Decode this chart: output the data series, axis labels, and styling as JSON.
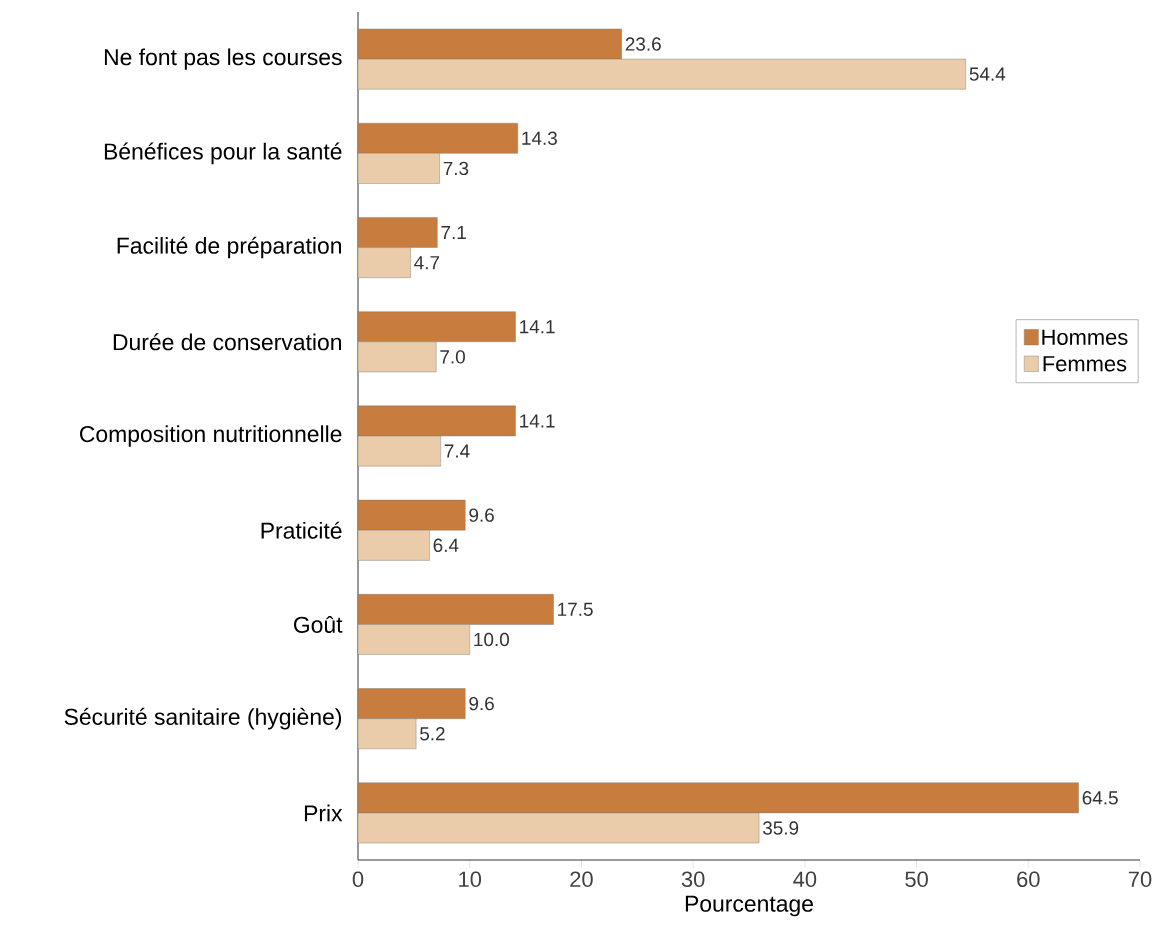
{
  "chart_data": {
    "type": "bar",
    "orientation": "horizontal",
    "xlabel": "Pourcentage",
    "categories": [
      "Ne font pas les courses",
      "Bénéfices pour la santé",
      "Facilité de préparation",
      "Durée de conservation",
      "Composition nutritionnelle",
      "Praticité",
      "Goût",
      "Sécurité sanitaire (hygiène)",
      "Prix"
    ],
    "series": [
      {
        "name": "Hommes",
        "color": "#c87d3e",
        "values": [
          23.6,
          14.3,
          7.1,
          14.1,
          14.1,
          9.6,
          17.5,
          9.6,
          64.5
        ],
        "value_labels": [
          "23.6",
          "14.3",
          "7.1",
          "14.1",
          "14.1",
          "9.6",
          "17.5",
          "9.6",
          "64.5"
        ]
      },
      {
        "name": "Femmes",
        "color": "#eacbaa",
        "values": [
          54.4,
          7.3,
          4.7,
          7.0,
          7.4,
          6.4,
          10.0,
          5.2,
          35.9
        ],
        "value_labels": [
          "54.4",
          "7.3",
          "4.7",
          "7.0",
          "7.4",
          "6.4",
          "10.0",
          "5.2",
          "35.9"
        ]
      }
    ],
    "xlim": [
      0,
      70
    ],
    "xticks": [
      0,
      10,
      20,
      30,
      40,
      50,
      60,
      70
    ],
    "grid": false,
    "legend": "right"
  }
}
